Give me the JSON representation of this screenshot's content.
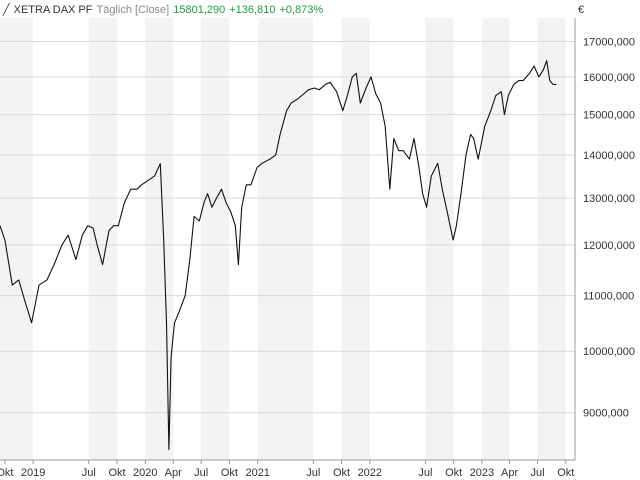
{
  "header": {
    "icon": "line-chart-icon",
    "symbol": "XETRA DAX PF",
    "period": "Täglich [Close]",
    "last": "15801,290",
    "change": "+136,810",
    "change_pct": "+0,873%"
  },
  "currency": "€",
  "colors": {
    "line": "#111111",
    "grid": "#d9d9d9",
    "band": "#f3f3f3",
    "positive": "#1e9e3a"
  },
  "chart_data": {
    "type": "line",
    "scale": "log",
    "grid": true,
    "xlim": [
      "2018-09-15",
      "2023-10-31"
    ],
    "ylim": [
      8300,
      17700
    ],
    "ytick_values": [
      9000,
      10000,
      11000,
      12000,
      13000,
      14000,
      15000,
      16000,
      17000
    ],
    "ytick_labels": [
      "9000,000",
      "10000,000",
      "11000,000",
      "12000,000",
      "13000,000",
      "14000,000",
      "15000,000",
      "16000,000",
      "17000,000"
    ],
    "xticks": [
      {
        "date": "2018-10-01",
        "label": "Okt"
      },
      {
        "date": "2019-01-01",
        "label": "2019"
      },
      {
        "date": "2019-07-01",
        "label": "Jul"
      },
      {
        "date": "2019-10-01",
        "label": "Okt"
      },
      {
        "date": "2020-01-01",
        "label": "2020"
      },
      {
        "date": "2020-04-01",
        "label": "Apr"
      },
      {
        "date": "2020-07-01",
        "label": "Jul"
      },
      {
        "date": "2020-10-01",
        "label": "Okt"
      },
      {
        "date": "2021-01-01",
        "label": "2021"
      },
      {
        "date": "2021-07-01",
        "label": "Jul"
      },
      {
        "date": "2021-10-01",
        "label": "Okt"
      },
      {
        "date": "2022-01-01",
        "label": "2022"
      },
      {
        "date": "2022-07-01",
        "label": "Jul"
      },
      {
        "date": "2022-10-01",
        "label": "Okt"
      },
      {
        "date": "2023-01-01",
        "label": "2023"
      },
      {
        "date": "2023-04-01",
        "label": "Apr"
      },
      {
        "date": "2023-07-01",
        "label": "Jul"
      },
      {
        "date": "2023-10-01",
        "label": "Okt"
      }
    ],
    "series": [
      {
        "x": [
          "2018-09-15",
          "2018-10-01",
          "2018-10-25",
          "2018-11-15",
          "2018-12-05",
          "2018-12-27",
          "2019-01-20",
          "2019-02-15",
          "2019-03-10",
          "2019-04-05",
          "2019-04-25",
          "2019-05-20",
          "2019-06-10",
          "2019-06-28",
          "2019-07-15",
          "2019-07-28",
          "2019-08-15",
          "2019-09-05",
          "2019-09-20",
          "2019-10-05",
          "2019-10-25",
          "2019-11-15",
          "2019-12-05",
          "2019-12-20",
          "2020-01-10",
          "2020-01-31",
          "2020-02-19",
          "2020-03-01",
          "2020-03-10",
          "2020-03-18",
          "2020-03-25",
          "2020-04-05",
          "2020-04-20",
          "2020-05-10",
          "2020-05-25",
          "2020-06-08",
          "2020-06-25",
          "2020-07-10",
          "2020-07-22",
          "2020-08-05",
          "2020-08-20",
          "2020-09-05",
          "2020-09-20",
          "2020-10-05",
          "2020-10-20",
          "2020-10-30",
          "2020-11-10",
          "2020-11-25",
          "2020-12-10",
          "2020-12-30",
          "2021-01-15",
          "2021-02-10",
          "2021-03-01",
          "2021-03-15",
          "2021-04-05",
          "2021-04-20",
          "2021-05-10",
          "2021-05-25",
          "2021-06-15",
          "2021-07-05",
          "2021-07-20",
          "2021-08-10",
          "2021-08-25",
          "2021-09-15",
          "2021-10-05",
          "2021-10-20",
          "2021-11-05",
          "2021-11-18",
          "2021-12-01",
          "2021-12-20",
          "2022-01-05",
          "2022-01-20",
          "2022-02-05",
          "2022-02-20",
          "2022-03-07",
          "2022-03-20",
          "2022-04-05",
          "2022-04-20",
          "2022-05-10",
          "2022-05-25",
          "2022-06-10",
          "2022-06-22",
          "2022-07-05",
          "2022-07-20",
          "2022-08-10",
          "2022-08-25",
          "2022-09-10",
          "2022-09-29",
          "2022-10-10",
          "2022-10-25",
          "2022-11-10",
          "2022-11-25",
          "2022-12-05",
          "2022-12-20",
          "2023-01-10",
          "2023-01-30",
          "2023-02-15",
          "2023-03-05",
          "2023-03-15",
          "2023-03-28",
          "2023-04-15",
          "2023-05-01",
          "2023-05-15",
          "2023-06-05",
          "2023-06-20",
          "2023-07-05",
          "2023-07-20",
          "2023-07-31",
          "2023-08-10",
          "2023-08-20",
          "2023-08-31"
        ],
        "y": [
          12400,
          12100,
          11200,
          11300,
          10900,
          10500,
          11200,
          11300,
          11600,
          12000,
          12200,
          11700,
          12200,
          12400,
          12350,
          12000,
          11600,
          12300,
          12400,
          12400,
          12900,
          13200,
          13200,
          13300,
          13400,
          13500,
          13790,
          12100,
          10500,
          8450,
          9900,
          10500,
          10700,
          11000,
          11700,
          12600,
          12500,
          12900,
          13100,
          12800,
          13000,
          13200,
          12900,
          12700,
          12400,
          11600,
          12800,
          13300,
          13300,
          13700,
          13800,
          13900,
          14000,
          14500,
          15100,
          15300,
          15400,
          15500,
          15650,
          15700,
          15650,
          15800,
          15850,
          15600,
          15100,
          15500,
          16000,
          16100,
          15300,
          15700,
          16000,
          15550,
          15300,
          14700,
          13200,
          14400,
          14100,
          14100,
          13900,
          14400,
          13700,
          13100,
          12800,
          13500,
          13800,
          13200,
          12700,
          12100,
          12400,
          13100,
          14000,
          14500,
          14400,
          13900,
          14700,
          15100,
          15500,
          15600,
          15000,
          15500,
          15800,
          15900,
          15900,
          16100,
          16300,
          16000,
          16200,
          16450,
          15900,
          15800,
          15790
        ]
      }
    ]
  }
}
